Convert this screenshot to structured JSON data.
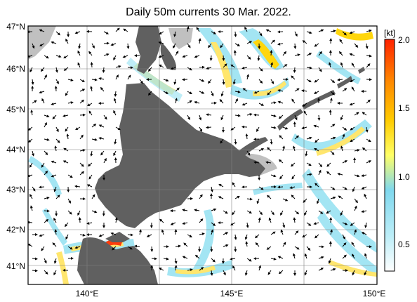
{
  "title": "Daily 50m currents 30 Mar. 2022.",
  "lat_labels": [
    "47°N",
    "46°N",
    "45°N",
    "44°N",
    "43°N",
    "42°N",
    "41°N"
  ],
  "lon_labels": [
    "140°E",
    "145°E",
    "150°E"
  ],
  "colorbar": {
    "unit": "[kt]",
    "ticks": [
      "2.0",
      "1.5",
      "1.0",
      "0.5"
    ],
    "range": [
      0,
      2.0
    ],
    "colors": [
      "#ffffff",
      "#bdeef8",
      "#7fd8ee",
      "#ffff66",
      "#ffcc00",
      "#ff8800",
      "#ff2200"
    ]
  },
  "map": {
    "lat_range": [
      40.6,
      47.0
    ],
    "lon_range": [
      138.0,
      150.0
    ],
    "land_color": "#606060",
    "shelf_color": "#bfbfbf",
    "grid": true
  }
}
